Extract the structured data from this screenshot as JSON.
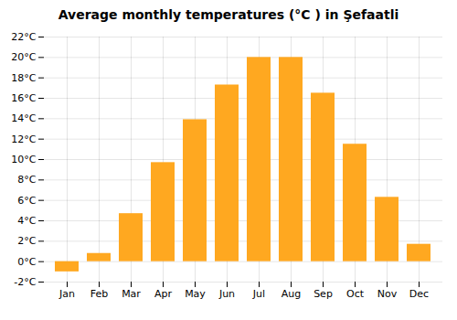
{
  "chart_data": {
    "type": "bar",
    "title": "Average monthly temperatures (°C ) in Şefaatli",
    "categories": [
      "Jan",
      "Feb",
      "Mar",
      "Apr",
      "May",
      "Jun",
      "Jul",
      "Aug",
      "Sep",
      "Oct",
      "Nov",
      "Dec"
    ],
    "values": [
      -1.0,
      0.8,
      4.7,
      9.7,
      13.9,
      17.3,
      20.0,
      20.0,
      16.5,
      11.5,
      6.3,
      1.7
    ],
    "color": "#FFA820",
    "ylim": [
      -2,
      22
    ],
    "yticks": [
      {
        "value": -2,
        "label": "-2°C"
      },
      {
        "value": 0,
        "label": "0°C"
      },
      {
        "value": 2,
        "label": "2°C"
      },
      {
        "value": 4,
        "label": "4°C"
      },
      {
        "value": 6,
        "label": "6°C"
      },
      {
        "value": 8,
        "label": "8°C"
      },
      {
        "value": 10,
        "label": "10°C"
      },
      {
        "value": 12,
        "label": "12°C"
      },
      {
        "value": 14,
        "label": "14°C"
      },
      {
        "value": 16,
        "label": "16°C"
      },
      {
        "value": 18,
        "label": "18°C"
      },
      {
        "value": 20,
        "label": "20°C"
      },
      {
        "value": 22,
        "label": "22°C"
      }
    ],
    "grid": true
  }
}
